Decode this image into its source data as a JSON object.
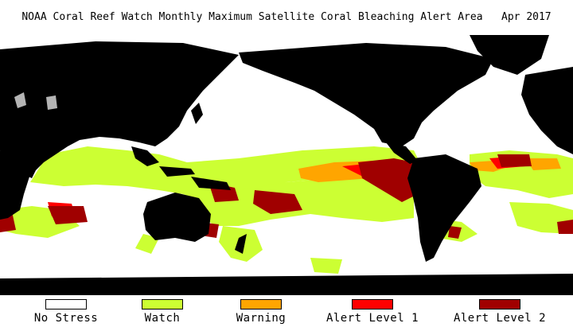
{
  "title": "NOAA Coral Reef Watch Monthly Maximum Satellite Coral Bleaching Alert Area   Apr 2017",
  "legend": [
    {
      "label": "No Stress",
      "color": "#ffffff"
    },
    {
      "label": "Watch",
      "color": "#ccff33"
    },
    {
      "label": "Warning",
      "color": "#ffa500"
    },
    {
      "label": "Alert Level 1",
      "color": "#ff0000"
    },
    {
      "label": "Alert Level 2",
      "color": "#a00000"
    }
  ],
  "colors": {
    "land": "#000000",
    "ocean": "#ffffff",
    "no_data": "#b4b4b4"
  }
}
